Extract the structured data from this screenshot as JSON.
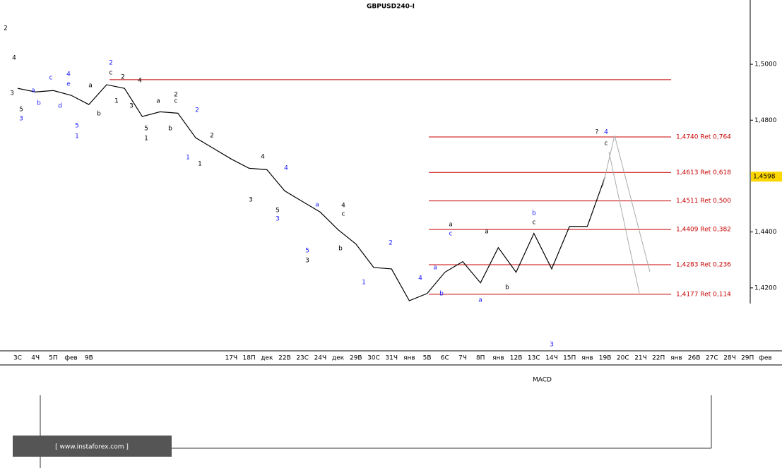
{
  "chart_data": {
    "type": "line",
    "title": "GBPUSD240-I",
    "categories": [
      "3С",
      "4Ч",
      "5П",
      "фев",
      "9В",
      null,
      null,
      null,
      null,
      null,
      null,
      null,
      "17Ч",
      "18П",
      "дек",
      "22В",
      "23С",
      "24Ч",
      "дек",
      "29В",
      "30С",
      "31Ч",
      "янв",
      "5В",
      "6С",
      "7Ч",
      "8П",
      "янв",
      "12В",
      "13С",
      "14Ч",
      "15П",
      "янв",
      "19В",
      "20С",
      "21Ч",
      "22П",
      "янв",
      "26В",
      "27С",
      "28Ч",
      "29П",
      "фев"
    ],
    "series": [
      {
        "name": "GBPUSD",
        "color": "#000000",
        "values": [
          1.4914,
          1.4901,
          1.4906,
          1.4889,
          1.4856,
          1.4927,
          1.4914,
          1.4813,
          1.483,
          1.4825,
          1.4737,
          1.4699,
          1.4661,
          1.4628,
          1.4623,
          1.4547,
          1.4509,
          1.4471,
          1.4408,
          1.4357,
          1.4273,
          1.4268,
          1.4154,
          1.418,
          1.4256,
          1.4294,
          1.4218,
          1.4344,
          1.4256,
          1.4395,
          1.4268,
          1.442,
          1.442,
          1.4598,
          null,
          null,
          null,
          null,
          null,
          null,
          null,
          null,
          null
        ]
      }
    ],
    "ylim": [
      1.4144,
      1.523
    ],
    "yticks": [
      {
        "value": 1.42,
        "label": "1,4200"
      },
      {
        "value": 1.44,
        "label": "1,4400"
      },
      {
        "value": 1.48,
        "label": "1,4800"
      },
      {
        "value": 1.5,
        "label": "1,5000"
      }
    ],
    "last_price": {
      "value": 1.4598,
      "label": "1,4598"
    },
    "levels_color": "#c80000",
    "top_level": 1.4945,
    "levels": [
      {
        "value": 1.474,
        "label": "1,4740 Ret 0,764"
      },
      {
        "value": 1.4613,
        "label": "1,4613 Ret 0,618"
      },
      {
        "value": 1.4511,
        "label": "1,4511 Ret 0,500"
      },
      {
        "value": 1.4409,
        "label": "1,4409 Ret 0,382"
      },
      {
        "value": 1.4283,
        "label": "1,4283 Ret 0,236"
      },
      {
        "value": 1.4177,
        "label": "1,4177 Ret 0,114"
      }
    ],
    "annotations": [
      "2",
      "4",
      "3",
      "5",
      "3",
      "a",
      "b",
      "c",
      "d",
      "4",
      "e",
      "5",
      "1",
      "2",
      "c",
      "b",
      "a",
      "2",
      "1",
      "3",
      "4",
      "5",
      "1",
      "b",
      "a",
      "c",
      "2",
      "2",
      "1",
      "1",
      "2",
      "4",
      "3",
      "4",
      "5",
      "3",
      "a",
      "4",
      "c",
      "b",
      "5",
      "3",
      "1",
      "2",
      "4",
      "a",
      "b",
      "a",
      "c",
      "a",
      "b",
      "a",
      "b",
      "c",
      "3",
      "?",
      "4",
      "c"
    ],
    "watermark": "[ www.instaforex.com ]",
    "indicator": "MACD"
  }
}
